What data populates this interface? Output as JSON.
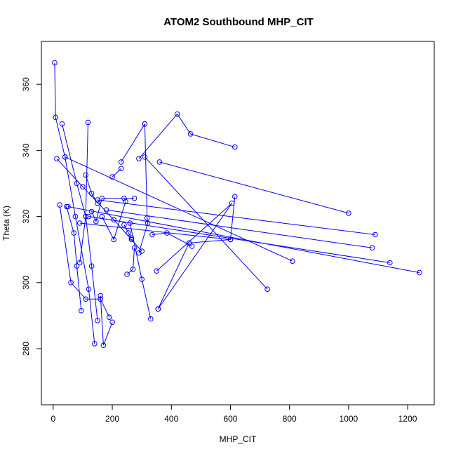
{
  "chart_data": {
    "type": "line",
    "title": "ATOM2 Southbound MHP_CIT",
    "xlabel": "MHP_CIT",
    "ylabel": "Theta (K)",
    "xlim": [
      -40,
      1290
    ],
    "ylim": [
      263,
      373
    ],
    "x_ticks": [
      0,
      200,
      400,
      600,
      800,
      1000,
      1200
    ],
    "y_ticks": [
      280,
      300,
      320,
      340,
      360
    ],
    "x_tick_labels": [
      "0",
      "200",
      "400",
      "600",
      "800",
      "1000",
      "1200"
    ],
    "y_tick_labels": [
      "280",
      "300",
      "320",
      "340",
      "360"
    ],
    "grid": false,
    "legend": "none",
    "marker": "open-circle",
    "color": "#0000ff",
    "series": [
      {
        "x": [
          5,
          8,
          40,
          75,
          120,
          140
        ],
        "y": [
          366.5,
          350.0,
          338.0,
          320.0,
          298.0,
          281.5
        ]
      },
      {
        "x": [
          30,
          80,
          110,
          130,
          150
        ],
        "y": [
          348.0,
          330.0,
          320.0,
          305.0,
          288.5
        ]
      },
      {
        "x": [
          12,
          100,
          205,
          265,
          300
        ],
        "y": [
          337.5,
          329.0,
          319.0,
          313.0,
          309.5
        ]
      },
      {
        "x": [
          22,
          60,
          110,
          160,
          190
        ],
        "y": [
          323.5,
          300.0,
          295.0,
          295.0,
          289.5
        ]
      },
      {
        "x": [
          45,
          70,
          80,
          95
        ],
        "y": [
          323.0,
          315.0,
          305.0,
          291.5
        ]
      },
      {
        "x": [
          90,
          110,
          118
        ],
        "y": [
          306.0,
          320.0,
          348.5
        ]
      },
      {
        "x": [
          110,
          130,
          150
        ],
        "y": [
          332.5,
          327.0,
          324.0
        ]
      },
      {
        "x": [
          130,
          145,
          165,
          240,
          275
        ],
        "y": [
          321.5,
          318.5,
          325.5,
          325.5,
          325.5
        ]
      },
      {
        "x": [
          165,
          205,
          245
        ],
        "y": [
          320.0,
          313.0,
          324.5
        ]
      },
      {
        "x": [
          160,
          170,
          200
        ],
        "y": [
          296.0,
          281.0,
          288.0
        ]
      },
      {
        "x": [
          250,
          270,
          275
        ],
        "y": [
          302.5,
          304.0,
          310.5
        ]
      },
      {
        "x": [
          240,
          255,
          265
        ],
        "y": [
          317.5,
          315.0,
          313.5
        ]
      },
      {
        "x": [
          290,
          320,
          318,
          310
        ],
        "y": [
          309.0,
          318.0,
          319.5,
          348.0
        ]
      },
      {
        "x": [
          230,
          310
        ],
        "y": [
          336.5,
          348.0
        ]
      },
      {
        "x": [
          200,
          230
        ],
        "y": [
          332.0,
          334.5
        ]
      },
      {
        "x": [
          290,
          420,
          465,
          615
        ],
        "y": [
          337.5,
          351.0,
          345.0,
          341.0
        ]
      },
      {
        "x": [
          335,
          385,
          470
        ],
        "y": [
          314.5,
          315.0,
          311.0
        ]
      },
      {
        "x": [
          330,
          300,
          260
        ],
        "y": [
          289.0,
          301.0,
          318.0
        ]
      },
      {
        "x": [
          355,
          460,
          600,
          615
        ],
        "y": [
          292.0,
          312.0,
          313.0,
          326.0
        ]
      },
      {
        "x": [
          355,
          605,
          350
        ],
        "y": [
          292.0,
          324.0,
          303.5
        ]
      },
      {
        "x": [
          310,
          725
        ],
        "y": [
          338.0,
          298.0
        ]
      },
      {
        "x": [
          360,
          1000
        ],
        "y": [
          336.5,
          321.0
        ]
      },
      {
        "x": [
          40,
          810
        ],
        "y": [
          338.0,
          306.5
        ]
      },
      {
        "x": [
          50,
          1240
        ],
        "y": [
          323.0,
          303.0
        ]
      },
      {
        "x": [
          150,
          1090
        ],
        "y": [
          325.0,
          314.5
        ]
      },
      {
        "x": [
          120,
          1140
        ],
        "y": [
          320.0,
          306.0
        ]
      },
      {
        "x": [
          180,
          1080
        ],
        "y": [
          322.0,
          310.5
        ]
      },
      {
        "x": [
          90,
          600
        ],
        "y": [
          318.0,
          313.0
        ]
      }
    ]
  }
}
